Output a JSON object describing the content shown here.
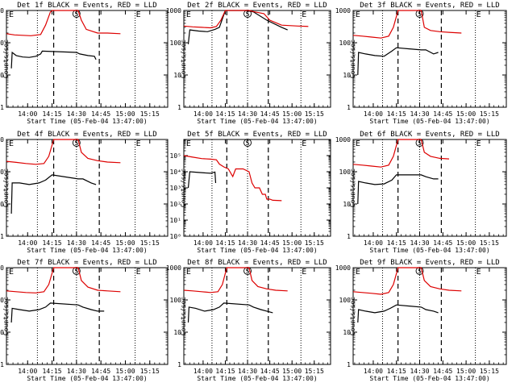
{
  "colors": {
    "events": "#000000",
    "lld": "#dd0000",
    "axis": "#000000"
  },
  "common": {
    "ylabel": "Counts/sec",
    "xlabel": "Start Time (05-Feb-04 13:47:00)",
    "x_ticks": [
      "14:00",
      "14:15",
      "14:30",
      "14:45",
      "15:00",
      "15:15"
    ],
    "x_tick_minutes": [
      13,
      28,
      43,
      58,
      73,
      88
    ],
    "xlim_minutes": [
      0,
      99
    ],
    "markers": {
      "S": "S",
      "E": "E",
      "E_left": "E",
      "E_left_minute": 1,
      "S_minute": 43,
      "E_minute": 79
    },
    "dashed_minutes": [
      29,
      57
    ],
    "dotted_minutes": [
      19,
      43,
      79
    ],
    "y_ticks_default": [
      "1",
      "10",
      "100",
      "1000"
    ]
  },
  "chart_data": [
    {
      "id": "det1",
      "type": "line",
      "title": "Det 1f BLACK = Events, RED = LLD",
      "yscale": "log",
      "ylim": [
        1,
        1000
      ],
      "series": [
        {
          "name": "Events",
          "points": [
            [
              3,
              16
            ],
            [
              3.5,
              50
            ],
            [
              6,
              40
            ],
            [
              10,
              36
            ],
            [
              14,
              35
            ],
            [
              18,
              38
            ],
            [
              21,
              45
            ],
            [
              22,
              55
            ],
            [
              43,
              50
            ],
            [
              45,
              45
            ],
            [
              50,
              40
            ],
            [
              54,
              38
            ],
            [
              55,
              30
            ]
          ]
        },
        {
          "name": "LLD",
          "points": [
            [
              0,
              190
            ],
            [
              5,
              175
            ],
            [
              10,
              170
            ],
            [
              15,
              165
            ],
            [
              21,
              180
            ],
            [
              24,
              350
            ],
            [
              27,
              900
            ],
            [
              28,
              1000
            ],
            [
              44,
              1000
            ],
            [
              46,
              500
            ],
            [
              49,
              260
            ],
            [
              56,
              200
            ],
            [
              62,
              200
            ],
            [
              70,
              190
            ]
          ]
        }
      ]
    },
    {
      "id": "det2",
      "type": "line",
      "title": "Det 2f BLACK = Events, RED = LLD",
      "yscale": "log",
      "ylim": [
        1,
        1000
      ],
      "series": [
        {
          "name": "Events",
          "points": [
            [
              3,
              90
            ],
            [
              4,
              250
            ],
            [
              10,
              230
            ],
            [
              16,
              220
            ],
            [
              21,
              260
            ],
            [
              24,
              300
            ],
            [
              28,
              1000
            ],
            [
              42,
              1000
            ],
            [
              47,
              900
            ],
            [
              56,
              500
            ],
            [
              66,
              300
            ],
            [
              70,
              250
            ]
          ]
        },
        {
          "name": "LLD",
          "points": [
            [
              0,
              330
            ],
            [
              6,
              310
            ],
            [
              12,
              300
            ],
            [
              18,
              290
            ],
            [
              22,
              320
            ],
            [
              25,
              500
            ],
            [
              28,
              1000
            ],
            [
              44,
              1000
            ],
            [
              48,
              900
            ],
            [
              54,
              800
            ],
            [
              58,
              500
            ],
            [
              66,
              350
            ],
            [
              77,
              330
            ],
            [
              84,
              320
            ]
          ]
        }
      ]
    },
    {
      "id": "det3",
      "type": "line",
      "title": "Det 3f BLACK = Events, RED = LLD",
      "yscale": "log",
      "ylim": [
        1,
        1000
      ],
      "series": [
        {
          "name": "Events",
          "points": [
            [
              3,
              10
            ],
            [
              3.5,
              50
            ],
            [
              8,
              45
            ],
            [
              14,
              40
            ],
            [
              20,
              38
            ],
            [
              25,
              55
            ],
            [
              28,
              70
            ],
            [
              44,
              60
            ],
            [
              47,
              60
            ],
            [
              52,
              45
            ],
            [
              55,
              50
            ]
          ]
        },
        {
          "name": "LLD",
          "points": [
            [
              0,
              170
            ],
            [
              6,
              160
            ],
            [
              12,
              150
            ],
            [
              18,
              140
            ],
            [
              23,
              160
            ],
            [
              26,
              300
            ],
            [
              29,
              1000
            ],
            [
              44,
              1000
            ],
            [
              46,
              300
            ],
            [
              50,
              240
            ],
            [
              56,
              220
            ],
            [
              62,
              210
            ],
            [
              70,
              200
            ]
          ]
        }
      ]
    },
    {
      "id": "det4",
      "type": "line",
      "title": "Det 4f BLACK = Events, RED = LLD",
      "yscale": "log",
      "ylim": [
        1,
        1000
      ],
      "series": [
        {
          "name": "Events",
          "points": [
            [
              3,
              5
            ],
            [
              3.5,
              45
            ],
            [
              8,
              45
            ],
            [
              14,
              40
            ],
            [
              20,
              45
            ],
            [
              24,
              55
            ],
            [
              28,
              80
            ],
            [
              44,
              60
            ],
            [
              47,
              60
            ],
            [
              52,
              45
            ],
            [
              55,
              40
            ]
          ]
        },
        {
          "name": "LLD",
          "points": [
            [
              0,
              210
            ],
            [
              6,
              195
            ],
            [
              12,
              180
            ],
            [
              18,
              170
            ],
            [
              23,
              180
            ],
            [
              26,
              300
            ],
            [
              29,
              1000
            ],
            [
              44,
              1000
            ],
            [
              46,
              400
            ],
            [
              50,
              260
            ],
            [
              56,
              220
            ],
            [
              62,
              200
            ],
            [
              70,
              190
            ]
          ]
        }
      ]
    },
    {
      "id": "det5",
      "type": "line",
      "title": "Det 5f BLACK = Events, RED = LLD",
      "yscale": "log",
      "ylim": [
        1,
        1000000
      ],
      "y_ticks": [
        "10⁰",
        "10¹",
        "10²",
        "10³",
        "10⁴",
        "10⁵"
      ],
      "series": [
        {
          "name": "Events",
          "points": [
            [
              3,
              1000
            ],
            [
              4,
              10000
            ],
            [
              10,
              9000
            ],
            [
              18,
              8000
            ],
            [
              21,
              9500
            ],
            [
              21.5,
              2000
            ]
          ]
        },
        {
          "name": "LLD",
          "points": [
            [
              0,
              100000
            ],
            [
              6,
              80000
            ],
            [
              12,
              65000
            ],
            [
              18,
              60000
            ],
            [
              22,
              55000
            ],
            [
              24,
              30000
            ],
            [
              27,
              20000
            ],
            [
              30,
              15000
            ],
            [
              33,
              5000
            ],
            [
              35,
              15000
            ],
            [
              40,
              15000
            ],
            [
              44,
              10000
            ],
            [
              46,
              2000
            ],
            [
              48,
              1000
            ],
            [
              50,
              1000
            ],
            [
              51,
              1000
            ],
            [
              53,
              400
            ],
            [
              55,
              400
            ],
            [
              56,
              200
            ],
            [
              58,
              200
            ],
            [
              60,
              170
            ],
            [
              66,
              160
            ]
          ]
        }
      ]
    },
    {
      "id": "det6",
      "type": "line",
      "title": "Det 6f BLACK = Events, RED = LLD",
      "yscale": "log",
      "ylim": [
        1,
        1000
      ],
      "series": [
        {
          "name": "Events",
          "points": [
            [
              3,
              10
            ],
            [
              3.5,
              50
            ],
            [
              8,
              45
            ],
            [
              14,
              40
            ],
            [
              20,
              42
            ],
            [
              25,
              55
            ],
            [
              28,
              80
            ],
            [
              44,
              80
            ],
            [
              47,
              70
            ],
            [
              52,
              60
            ],
            [
              55,
              60
            ]
          ]
        },
        {
          "name": "LLD",
          "points": [
            [
              0,
              170
            ],
            [
              6,
              160
            ],
            [
              12,
              150
            ],
            [
              18,
              140
            ],
            [
              23,
              160
            ],
            [
              26,
              300
            ],
            [
              29,
              1000
            ],
            [
              44,
              1000
            ],
            [
              46,
              400
            ],
            [
              50,
              300
            ],
            [
              56,
              260
            ],
            [
              62,
              250
            ]
          ]
        }
      ]
    },
    {
      "id": "det7",
      "type": "line",
      "title": "Det 7f BLACK = Events, RED = LLD",
      "yscale": "log",
      "ylim": [
        1,
        1000
      ],
      "series": [
        {
          "name": "Events",
          "points": [
            [
              3,
              20
            ],
            [
              3.5,
              55
            ],
            [
              8,
              50
            ],
            [
              14,
              45
            ],
            [
              20,
              50
            ],
            [
              24,
              60
            ],
            [
              27,
              80
            ],
            [
              44,
              70
            ],
            [
              47,
              60
            ],
            [
              52,
              50
            ],
            [
              56,
              45
            ],
            [
              60,
              45
            ]
          ]
        },
        {
          "name": "LLD",
          "points": [
            [
              0,
              190
            ],
            [
              6,
              180
            ],
            [
              12,
              170
            ],
            [
              18,
              165
            ],
            [
              23,
              180
            ],
            [
              26,
              300
            ],
            [
              29,
              1000
            ],
            [
              44,
              1000
            ],
            [
              46,
              400
            ],
            [
              50,
              250
            ],
            [
              56,
              200
            ],
            [
              62,
              190
            ],
            [
              70,
              180
            ]
          ]
        }
      ]
    },
    {
      "id": "det8",
      "type": "line",
      "title": "Det 8f BLACK = Events, RED = LLD",
      "yscale": "log",
      "ylim": [
        1,
        1000
      ],
      "series": [
        {
          "name": "Events",
          "points": [
            [
              3,
              20
            ],
            [
              3.5,
              60
            ],
            [
              8,
              55
            ],
            [
              14,
              45
            ],
            [
              20,
              50
            ],
            [
              24,
              60
            ],
            [
              27,
              80
            ],
            [
              44,
              70
            ],
            [
              47,
              60
            ],
            [
              52,
              50
            ],
            [
              56,
              45
            ],
            [
              60,
              40
            ]
          ]
        },
        {
          "name": "LLD",
          "points": [
            [
              0,
              200
            ],
            [
              6,
              190
            ],
            [
              12,
              180
            ],
            [
              18,
              170
            ],
            [
              23,
              180
            ],
            [
              26,
              300
            ],
            [
              29,
              1000
            ],
            [
              44,
              1000
            ],
            [
              46,
              400
            ],
            [
              50,
              260
            ],
            [
              56,
              220
            ],
            [
              62,
              200
            ],
            [
              70,
              190
            ]
          ]
        }
      ]
    },
    {
      "id": "det9",
      "type": "line",
      "title": "Det 9f BLACK = Events, RED = LLD",
      "yscale": "log",
      "ylim": [
        1,
        1000
      ],
      "series": [
        {
          "name": "Events",
          "points": [
            [
              3,
              20
            ],
            [
              3.5,
              50
            ],
            [
              8,
              45
            ],
            [
              14,
              40
            ],
            [
              20,
              45
            ],
            [
              24,
              55
            ],
            [
              28,
              70
            ],
            [
              44,
              60
            ],
            [
              47,
              50
            ],
            [
              52,
              45
            ],
            [
              55,
              40
            ]
          ]
        },
        {
          "name": "LLD",
          "points": [
            [
              0,
              180
            ],
            [
              6,
              170
            ],
            [
              12,
              160
            ],
            [
              18,
              150
            ],
            [
              23,
              170
            ],
            [
              26,
              300
            ],
            [
              29,
              1000
            ],
            [
              44,
              1000
            ],
            [
              46,
              400
            ],
            [
              50,
              260
            ],
            [
              56,
              220
            ],
            [
              62,
              200
            ],
            [
              70,
              190
            ]
          ]
        }
      ]
    }
  ]
}
